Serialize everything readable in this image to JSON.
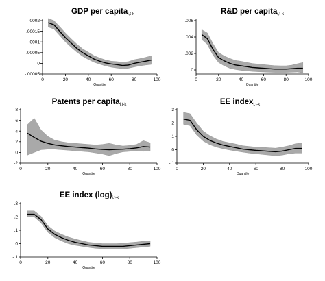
{
  "chart_data": [
    {
      "type": "line",
      "title": "GDP per capita",
      "title_subscript": "i,t-k",
      "xlabel": "Quantile",
      "xlim": [
        0,
        100
      ],
      "xticks": [
        "0",
        "20",
        "40",
        "60",
        "80",
        "100"
      ],
      "ylim": [
        -5e-05,
        0.0002
      ],
      "yticks": [
        {
          "v": 0.0002,
          "label": ".0002"
        },
        {
          "v": 0.00015,
          "label": ".00015"
        },
        {
          "v": 0.0001,
          "label": ".0001"
        },
        {
          "v": 5e-05,
          "label": ".00005"
        },
        {
          "v": 0,
          "label": "0"
        },
        {
          "v": -5e-05,
          "label": "-.00005"
        }
      ],
      "x": [
        5,
        10,
        15,
        20,
        25,
        30,
        35,
        40,
        45,
        50,
        55,
        60,
        65,
        70,
        75,
        80,
        85,
        90,
        95
      ],
      "y": [
        0.00019,
        0.00018,
        0.00015,
        0.00012,
        9.5e-05,
        7e-05,
        5e-05,
        3.5e-05,
        2e-05,
        1e-05,
        2e-06,
        -3e-06,
        -6e-06,
        -1e-05,
        -8e-06,
        0,
        5e-06,
        1e-05,
        1.5e-05
      ],
      "lower": [
        0.00017,
        0.00016,
        0.00013,
        0.0001,
        7.5e-05,
        5.2e-05,
        3.3e-05,
        1.8e-05,
        5e-06,
        -4e-06,
        -1.2e-05,
        -1.8e-05,
        -2.2e-05,
        -2.5e-05,
        -2.3e-05,
        -1.7e-05,
        -1.2e-05,
        -8e-06,
        -5e-06
      ],
      "upper": [
        0.00021,
        0.0002,
        0.000172,
        0.000142,
        0.000115,
        9e-05,
        6.8e-05,
        5.2e-05,
        3.6e-05,
        2.5e-05,
        1.6e-05,
        1e-05,
        8e-06,
        5e-06,
        8e-06,
        1.7e-05,
        2.2e-05,
        2.8e-05,
        3.5e-05
      ]
    },
    {
      "type": "line",
      "title": "R&D per capita",
      "title_subscript": "i,t-k",
      "xlabel": "Quantile",
      "xlim": [
        0,
        100
      ],
      "xticks": [
        "0",
        "20",
        "40",
        "60",
        "80",
        "100"
      ],
      "ylim": [
        -0.0005,
        0.006
      ],
      "yticks": [
        {
          "v": 0.006,
          "label": ".006"
        },
        {
          "v": 0.004,
          "label": ".004"
        },
        {
          "v": 0.002,
          "label": ".002"
        },
        {
          "v": 0,
          "label": "0"
        }
      ],
      "x": [
        5,
        10,
        15,
        20,
        25,
        30,
        35,
        40,
        45,
        50,
        55,
        60,
        65,
        70,
        75,
        80,
        85,
        90,
        95
      ],
      "y": [
        0.0043,
        0.0038,
        0.0025,
        0.0015,
        0.0011,
        0.0008,
        0.0006,
        0.0005,
        0.0004,
        0.0003,
        0.00025,
        0.0002,
        0.00015,
        0.0001,
        0.0001,
        0.0001,
        0.00015,
        0.0002,
        0.0002
      ],
      "lower": [
        0.0037,
        0.0031,
        0.0018,
        0.0009,
        0.0005,
        0.0002,
        5e-05,
        -5e-05,
        -0.00012,
        -0.00018,
        -0.00022,
        -0.00025,
        -0.00028,
        -0.0003,
        -0.0003,
        -0.0003,
        -0.00028,
        -0.00025,
        -0.00035
      ],
      "upper": [
        0.0049,
        0.0045,
        0.0032,
        0.0021,
        0.0017,
        0.0014,
        0.00115,
        0.00105,
        0.00092,
        0.00078,
        0.00072,
        0.00065,
        0.00058,
        0.00052,
        0.0005,
        0.0005,
        0.00058,
        0.00075,
        0.0009
      ]
    },
    {
      "type": "line",
      "title": "Patents per capita",
      "title_subscript": "i,t-k",
      "xlabel": "Quantile",
      "xlim": [
        0,
        100
      ],
      "xticks": [
        "0",
        "20",
        "40",
        "60",
        "80",
        "100"
      ],
      "ylim": [
        -2,
        8
      ],
      "yticks": [
        {
          "v": 8,
          "label": "8"
        },
        {
          "v": 6,
          "label": "6"
        },
        {
          "v": 4,
          "label": "4"
        },
        {
          "v": 2,
          "label": "2"
        },
        {
          "v": 0,
          "label": "0"
        },
        {
          "v": -2,
          "label": "-2"
        }
      ],
      "x": [
        5,
        10,
        15,
        20,
        25,
        30,
        35,
        40,
        45,
        50,
        55,
        60,
        65,
        70,
        75,
        80,
        85,
        90,
        95
      ],
      "y": [
        3.6,
        2.8,
        2.1,
        1.7,
        1.4,
        1.25,
        1.1,
        1.0,
        0.9,
        0.8,
        0.65,
        0.55,
        0.5,
        0.55,
        0.6,
        0.7,
        0.85,
        1.1,
        1.0
      ],
      "lower": [
        -0.5,
        0.0,
        0.5,
        0.6,
        0.6,
        0.5,
        0.4,
        0.3,
        0.2,
        0.1,
        -0.1,
        -0.3,
        -0.6,
        -0.2,
        0.1,
        0.2,
        0.3,
        0.2,
        0.3
      ],
      "upper": [
        5.2,
        6.4,
        4.2,
        3.0,
        2.3,
        2.0,
        1.8,
        1.7,
        1.6,
        1.5,
        1.4,
        1.5,
        1.7,
        1.4,
        1.2,
        1.3,
        1.5,
        2.2,
        1.8
      ]
    },
    {
      "type": "line",
      "title": "EE index",
      "title_subscript": "i,t-k",
      "xlabel": "Quantile",
      "xlim": [
        0,
        100
      ],
      "xticks": [
        "0",
        "20",
        "40",
        "60",
        "80",
        "100"
      ],
      "ylim": [
        -0.1,
        0.3
      ],
      "yticks": [
        {
          "v": 0.3,
          "label": ".3"
        },
        {
          "v": 0.2,
          "label": ".2"
        },
        {
          "v": 0.1,
          "label": ".1"
        },
        {
          "v": 0,
          "label": "0"
        },
        {
          "v": -0.1,
          "label": "-.1"
        }
      ],
      "x": [
        5,
        10,
        15,
        20,
        25,
        30,
        35,
        40,
        45,
        50,
        55,
        60,
        65,
        70,
        75,
        80,
        85,
        90,
        95
      ],
      "y": [
        0.23,
        0.22,
        0.15,
        0.1,
        0.07,
        0.05,
        0.035,
        0.025,
        0.015,
        0.005,
        0.0,
        -0.005,
        -0.008,
        -0.012,
        -0.015,
        -0.01,
        0.0,
        0.01,
        0.01
      ],
      "lower": [
        0.19,
        0.18,
        0.11,
        0.065,
        0.038,
        0.02,
        0.008,
        -0.002,
        -0.01,
        -0.018,
        -0.025,
        -0.03,
        -0.035,
        -0.04,
        -0.045,
        -0.04,
        -0.03,
        -0.025,
        -0.025
      ],
      "upper": [
        0.28,
        0.27,
        0.2,
        0.14,
        0.105,
        0.08,
        0.062,
        0.052,
        0.042,
        0.03,
        0.025,
        0.02,
        0.018,
        0.015,
        0.012,
        0.02,
        0.03,
        0.045,
        0.05
      ]
    },
    {
      "type": "line",
      "title": "EE index (log)",
      "title_subscript": "i,t-k",
      "xlabel": "Quantile",
      "xlim": [
        0,
        100
      ],
      "xticks": [
        "0",
        "20",
        "40",
        "60",
        "80",
        "100"
      ],
      "ylim": [
        -0.1,
        0.3
      ],
      "yticks": [
        {
          "v": 0.3,
          "label": ".3"
        },
        {
          "v": 0.2,
          "label": ".2"
        },
        {
          "v": 0.1,
          "label": ".1"
        },
        {
          "v": 0,
          "label": "0"
        },
        {
          "v": -0.1,
          "label": "-.1"
        }
      ],
      "x": [
        5,
        10,
        15,
        20,
        25,
        30,
        35,
        40,
        45,
        50,
        55,
        60,
        65,
        70,
        75,
        80,
        85,
        90,
        95
      ],
      "y": [
        0.22,
        0.22,
        0.18,
        0.11,
        0.07,
        0.045,
        0.025,
        0.01,
        0.0,
        -0.01,
        -0.015,
        -0.02,
        -0.02,
        -0.02,
        -0.02,
        -0.015,
        -0.01,
        -0.005,
        0.0
      ],
      "lower": [
        0.2,
        0.2,
        0.155,
        0.085,
        0.045,
        0.02,
        0.0,
        -0.012,
        -0.02,
        -0.028,
        -0.035,
        -0.038,
        -0.04,
        -0.04,
        -0.04,
        -0.035,
        -0.03,
        -0.025,
        -0.02
      ],
      "upper": [
        0.245,
        0.245,
        0.205,
        0.135,
        0.095,
        0.07,
        0.05,
        0.035,
        0.022,
        0.01,
        0.005,
        0.0,
        0.0,
        0.0,
        0.002,
        0.008,
        0.012,
        0.018,
        0.022
      ]
    }
  ]
}
